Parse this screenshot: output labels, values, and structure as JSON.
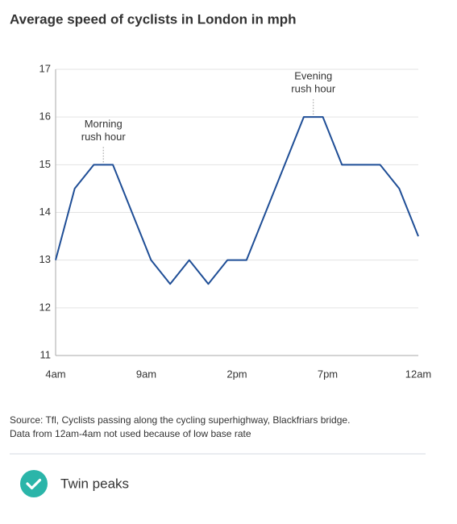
{
  "chart_data": {
    "type": "line",
    "title": "Average speed of cyclists in London in mph",
    "x": [
      0,
      1,
      2,
      3,
      4,
      5,
      6,
      7,
      8,
      9,
      10,
      11,
      12,
      13,
      14,
      15,
      16,
      17,
      18,
      19
    ],
    "series": [
      {
        "color": "#1f4e96",
        "values": [
          13,
          14.5,
          15,
          15,
          14,
          13,
          12.5,
          13,
          12.5,
          13,
          13,
          14,
          15,
          16,
          16,
          15,
          15,
          15,
          14.5,
          13.5
        ]
      }
    ],
    "xlim": [
      0,
      19
    ],
    "xticks": [
      {
        "value": 0,
        "label": "4am"
      },
      {
        "value": 4.75,
        "label": "9am"
      },
      {
        "value": 9.5,
        "label": "2pm"
      },
      {
        "value": 14.25,
        "label": "7pm"
      },
      {
        "value": 19,
        "label": "12am"
      }
    ],
    "ylim": [
      11,
      17
    ],
    "yticks": [
      11,
      12,
      13,
      14,
      15,
      16,
      17
    ],
    "grid": true,
    "annotations": [
      {
        "text": [
          "Morning",
          "rush hour"
        ],
        "x": 2.5,
        "y": 15
      },
      {
        "text": [
          "Evening",
          "rush hour"
        ],
        "x": 13.5,
        "y": 16
      }
    ],
    "source": [
      "Source: Tfl, Cyclists passing along the cycling superhighway, Blackfriars bridge.",
      "Data from 12am-4am not used because of low base rate"
    ]
  },
  "answer": {
    "label": "Twin peaks"
  }
}
